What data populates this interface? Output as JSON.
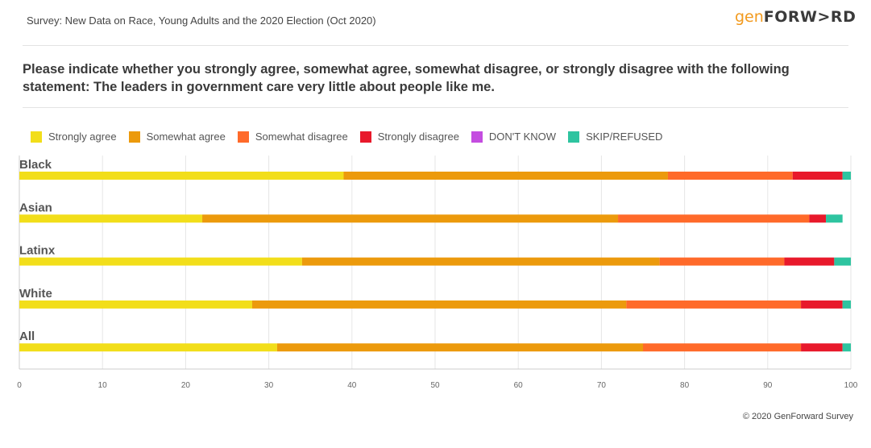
{
  "header": {
    "subtitle": "Survey: New Data on Race, Young Adults and the 2020 Election (Oct 2020)",
    "logo_gen": "gen",
    "logo_forward": "FORW>RD"
  },
  "question": "Please indicate whether you strongly agree, somewhat agree, somewhat disagree, or strongly disagree with the following statement: The leaders in government care very little about people like me.",
  "footer": {
    "credit": "© 2020 GenForward Survey"
  },
  "chart_data": {
    "type": "bar",
    "orientation": "horizontal",
    "stacked": true,
    "categories": [
      "Black",
      "Asian",
      "Latinx",
      "White",
      "All"
    ],
    "series": [
      {
        "name": "Strongly agree",
        "color": "#f2de1a",
        "values": [
          39,
          22,
          34,
          28,
          31
        ]
      },
      {
        "name": "Somewhat agree",
        "color": "#ec9a0c",
        "values": [
          39,
          50,
          43,
          45,
          44
        ]
      },
      {
        "name": "Somewhat disagree",
        "color": "#ff6a2a",
        "values": [
          15,
          23,
          15,
          21,
          19
        ]
      },
      {
        "name": "Strongly disagree",
        "color": "#e8192b",
        "values": [
          6,
          2,
          6,
          5,
          5
        ]
      },
      {
        "name": "DON'T KNOW",
        "color": "#c44de0",
        "values": [
          0,
          0,
          0,
          0,
          0
        ]
      },
      {
        "name": "SKIP/REFUSED",
        "color": "#2ec4a0",
        "values": [
          1,
          2,
          2,
          1,
          1
        ]
      }
    ],
    "xlim": [
      0,
      100
    ],
    "xticks": [
      "0",
      "10",
      "20",
      "30",
      "40",
      "50",
      "60",
      "70",
      "80",
      "90",
      "100"
    ],
    "grid": true,
    "legend": "top-left",
    "title": "",
    "xlabel": "",
    "ylabel": ""
  }
}
